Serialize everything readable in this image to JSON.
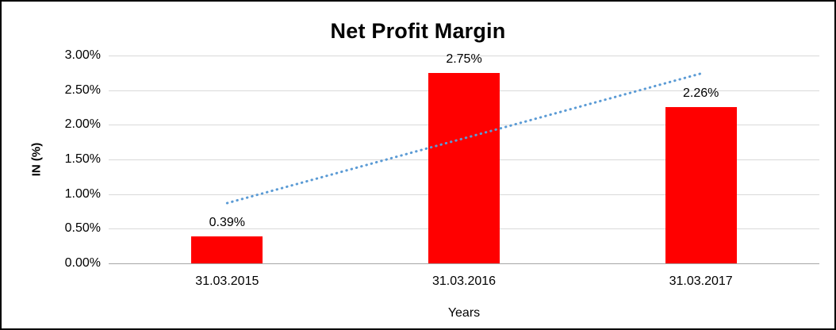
{
  "chart_data": {
    "type": "bar",
    "title": "Net Profit Margin",
    "xlabel": "Years",
    "ylabel": "IN (%)",
    "categories": [
      "31.03.2015",
      "31.03.2016",
      "31.03.2017"
    ],
    "values": [
      0.39,
      2.75,
      2.26
    ],
    "data_labels": [
      "0.39%",
      "2.75%",
      "2.26%"
    ],
    "ylim": [
      0,
      3.0
    ],
    "ytick_step": 0.5,
    "yticks": [
      "3.00%",
      "2.50%",
      "2.00%",
      "1.50%",
      "1.00%",
      "0.50%",
      "0.00%"
    ],
    "grid": true,
    "legend": "none",
    "bar_color": "#ff0000",
    "trendline": {
      "style": "dotted",
      "color": "#5b9bd5",
      "start_value": 0.87,
      "end_value": 2.74
    }
  }
}
